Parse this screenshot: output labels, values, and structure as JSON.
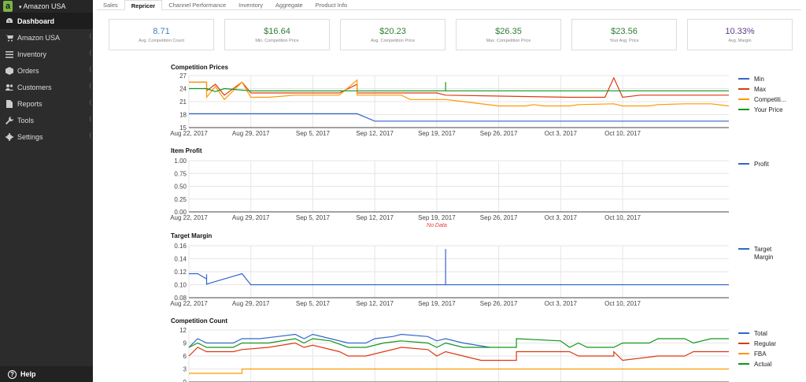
{
  "sidebar": {
    "store_selector": "Amazon USA",
    "logo": "a",
    "items": [
      {
        "label": "Dashboard",
        "icon": "gauge-icon",
        "active": true
      },
      {
        "label": "Amazon USA",
        "icon": "cart-icon"
      },
      {
        "label": "Inventory",
        "icon": "list-icon"
      },
      {
        "label": "Orders",
        "icon": "cube-icon"
      },
      {
        "label": "Customers",
        "icon": "users-icon"
      },
      {
        "label": "Reports",
        "icon": "document-icon"
      },
      {
        "label": "Tools",
        "icon": "wrench-icon"
      },
      {
        "label": "Settings",
        "icon": "gear-icon"
      }
    ],
    "help": "Help"
  },
  "tabs": [
    "Sales",
    "Repricer",
    "Channel Performance",
    "Inventory",
    "Aggregate",
    "Product Info"
  ],
  "active_tab": "Repricer",
  "stats": [
    {
      "value": "8.71",
      "label": "Avg. Competition Count",
      "color": "#3f7fbf"
    },
    {
      "value": "$16.64",
      "label": "Min. Competition Price",
      "color": "#2e7d32"
    },
    {
      "value": "$20.23",
      "label": "Avg. Competition Price",
      "color": "#2e7d32"
    },
    {
      "value": "$26.35",
      "label": "Max. Competition Price",
      "color": "#2e7d32"
    },
    {
      "value": "$23.56",
      "label": "Your Avg. Price",
      "color": "#2e7d32"
    },
    {
      "value": "10.33%",
      "label": "Avg. Margin",
      "color": "#5e3a8c"
    }
  ],
  "chart_data": [
    {
      "type": "line",
      "title": "Competition Prices",
      "x_ticks": [
        "Aug 22, 2017",
        "Aug 29, 2017",
        "Sep 5, 2017",
        "Sep 12, 2017",
        "Sep 19, 2017",
        "Sep 26, 2017",
        "Oct 3, 2017",
        "Oct 10, 2017"
      ],
      "xlim": [
        "2017-08-22",
        "2017-10-22"
      ],
      "y_ticks": [
        "27",
        "24",
        "21",
        "18",
        "15"
      ],
      "ylim": [
        15,
        27
      ],
      "series": [
        {
          "name": "Min",
          "color": "#3366cc",
          "points": [
            [
              "2017-08-22",
              18.2
            ],
            [
              "2017-09-10",
              18.2
            ],
            [
              "2017-09-12",
              16.5
            ],
            [
              "2017-10-22",
              16.5
            ]
          ]
        },
        {
          "name": "Max",
          "color": "#dc3912",
          "points": [
            [
              "2017-08-22",
              25.5
            ],
            [
              "2017-08-24",
              25.5
            ],
            [
              "2017-08-24",
              23.5
            ],
            [
              "2017-08-25",
              25
            ],
            [
              "2017-08-26",
              22.5
            ],
            [
              "2017-08-28",
              25.5
            ],
            [
              "2017-08-29",
              23
            ],
            [
              "2017-09-08",
              23
            ],
            [
              "2017-09-10",
              25
            ],
            [
              "2017-09-10",
              23
            ],
            [
              "2017-09-19",
              23
            ],
            [
              "2017-09-20",
              22.5
            ],
            [
              "2017-10-04",
              22
            ],
            [
              "2017-10-08",
              22
            ],
            [
              "2017-10-09",
              26.5
            ],
            [
              "2017-10-10",
              22
            ],
            [
              "2017-10-12",
              22.5
            ],
            [
              "2017-10-22",
              22.5
            ]
          ]
        },
        {
          "name": "Competiti...",
          "color": "#ff9900",
          "points": [
            [
              "2017-08-22",
              25.5
            ],
            [
              "2017-08-24",
              25.5
            ],
            [
              "2017-08-24",
              22
            ],
            [
              "2017-08-25",
              24.5
            ],
            [
              "2017-08-26",
              21.5
            ],
            [
              "2017-08-28",
              25.5
            ],
            [
              "2017-08-29",
              22
            ],
            [
              "2017-08-31",
              22
            ],
            [
              "2017-09-03",
              22.5
            ],
            [
              "2017-09-08",
              22.5
            ],
            [
              "2017-09-10",
              26
            ],
            [
              "2017-09-10",
              22.5
            ],
            [
              "2017-09-15",
              22.5
            ],
            [
              "2017-09-16",
              21.5
            ],
            [
              "2017-09-20",
              21.5
            ],
            [
              "2017-09-22",
              21
            ],
            [
              "2017-09-26",
              20
            ],
            [
              "2017-09-29",
              20
            ],
            [
              "2017-09-30",
              20.3
            ],
            [
              "2017-10-01",
              20
            ],
            [
              "2017-10-04",
              20
            ],
            [
              "2017-10-05",
              20.3
            ],
            [
              "2017-10-09",
              20.5
            ],
            [
              "2017-10-10",
              20
            ],
            [
              "2017-10-13",
              20
            ],
            [
              "2017-10-14",
              20.3
            ],
            [
              "2017-10-17",
              20.5
            ],
            [
              "2017-10-20",
              20.5
            ],
            [
              "2017-10-22",
              20
            ]
          ]
        },
        {
          "name": "Your Price",
          "color": "#109618",
          "points": [
            [
              "2017-08-22",
              24
            ],
            [
              "2017-08-24",
              24
            ],
            [
              "2017-08-25",
              23.3
            ],
            [
              "2017-08-26",
              24
            ],
            [
              "2017-08-29",
              23.5
            ],
            [
              "2017-09-20",
              23.5
            ],
            [
              "2017-09-20",
              25.5
            ],
            [
              "2017-09-20",
              23.5
            ],
            [
              "2017-10-22",
              23.5
            ]
          ]
        }
      ]
    },
    {
      "type": "line",
      "title": "Item Profit",
      "x_ticks": [
        "Aug 22, 2017",
        "Aug 29, 2017",
        "Sep 5, 2017",
        "Sep 12, 2017",
        "Sep 19, 2017",
        "Sep 26, 2017",
        "Oct 3, 2017",
        "Oct 10, 2017"
      ],
      "xlim": [
        "2017-08-22",
        "2017-10-22"
      ],
      "y_ticks": [
        "1.00",
        "0.75",
        "0.50",
        "0.25",
        "0.00"
      ],
      "ylim": [
        0,
        1
      ],
      "series": [
        {
          "name": "Profit",
          "color": "#3366cc",
          "points": []
        }
      ],
      "annotation": "No Data"
    },
    {
      "type": "line",
      "title": "Target Margin",
      "x_ticks": [
        "Aug 22, 2017",
        "Aug 29, 2017",
        "Sep 5, 2017",
        "Sep 12, 2017",
        "Sep 19, 2017",
        "Sep 26, 2017",
        "Oct 3, 2017",
        "Oct 10, 2017"
      ],
      "xlim": [
        "2017-08-22",
        "2017-10-22"
      ],
      "y_ticks": [
        "0.16",
        "0.14",
        "0.12",
        "0.10",
        "0.08"
      ],
      "ylim": [
        0.08,
        0.16
      ],
      "series": [
        {
          "name": "Target Margin",
          "color": "#3366cc",
          "points": [
            [
              "2017-08-22",
              0.117
            ],
            [
              "2017-08-23",
              0.117
            ],
            [
              "2017-08-24",
              0.109
            ],
            [
              "2017-08-24",
              0.1
            ],
            [
              "2017-08-24",
              0.116
            ],
            [
              "2017-08-24",
              0.101
            ],
            [
              "2017-08-27",
              0.113
            ],
            [
              "2017-08-28",
              0.117
            ],
            [
              "2017-08-29",
              0.1
            ],
            [
              "2017-09-20",
              0.1
            ],
            [
              "2017-09-20",
              0.155
            ],
            [
              "2017-09-20",
              0.1
            ],
            [
              "2017-10-22",
              0.1
            ]
          ]
        }
      ]
    },
    {
      "type": "line",
      "title": "Competition Count",
      "x_ticks": [],
      "xlim": [
        "2017-08-22",
        "2017-10-22"
      ],
      "y_ticks": [
        "12",
        "9",
        "6",
        "3",
        "0"
      ],
      "ylim": [
        0,
        12
      ],
      "series": [
        {
          "name": "Total",
          "color": "#3366cc",
          "points": [
            [
              "2017-08-22",
              8
            ],
            [
              "2017-08-23",
              10
            ],
            [
              "2017-08-24",
              9
            ],
            [
              "2017-08-27",
              9
            ],
            [
              "2017-08-28",
              10
            ],
            [
              "2017-08-30",
              10
            ],
            [
              "2017-09-01",
              10.5
            ],
            [
              "2017-09-03",
              11
            ],
            [
              "2017-09-04",
              10
            ],
            [
              "2017-09-05",
              11
            ],
            [
              "2017-09-07",
              10
            ],
            [
              "2017-09-09",
              9
            ],
            [
              "2017-09-11",
              9
            ],
            [
              "2017-09-12",
              10
            ],
            [
              "2017-09-14",
              10.5
            ],
            [
              "2017-09-15",
              11
            ],
            [
              "2017-09-18",
              10.5
            ],
            [
              "2017-09-19",
              9.5
            ],
            [
              "2017-09-20",
              10
            ],
            [
              "2017-09-22",
              9
            ],
            [
              "2017-09-25",
              8
            ]
          ]
        },
        {
          "name": "Regular",
          "color": "#dc3912",
          "points": [
            [
              "2017-08-22",
              6
            ],
            [
              "2017-08-23",
              8
            ],
            [
              "2017-08-24",
              7
            ],
            [
              "2017-08-27",
              7
            ],
            [
              "2017-08-28",
              7.5
            ],
            [
              "2017-08-31",
              8
            ],
            [
              "2017-09-03",
              9
            ],
            [
              "2017-09-04",
              8
            ],
            [
              "2017-09-05",
              8.5
            ],
            [
              "2017-09-08",
              7
            ],
            [
              "2017-09-09",
              6
            ],
            [
              "2017-09-11",
              6
            ],
            [
              "2017-09-13",
              7
            ],
            [
              "2017-09-15",
              8
            ],
            [
              "2017-09-18",
              7.5
            ],
            [
              "2017-09-19",
              6
            ],
            [
              "2017-09-20",
              7
            ],
            [
              "2017-09-22",
              6
            ],
            [
              "2017-09-24",
              5
            ],
            [
              "2017-09-28",
              5
            ],
            [
              "2017-09-28",
              7
            ],
            [
              "2017-10-04",
              7
            ],
            [
              "2017-10-05",
              6
            ],
            [
              "2017-10-09",
              6
            ],
            [
              "2017-10-09",
              7
            ],
            [
              "2017-10-10",
              5
            ],
            [
              "2017-10-14",
              6
            ],
            [
              "2017-10-17",
              6
            ],
            [
              "2017-10-18",
              7
            ],
            [
              "2017-10-22",
              7
            ]
          ]
        },
        {
          "name": "FBA",
          "color": "#ff9900",
          "points": [
            [
              "2017-08-22",
              2
            ],
            [
              "2017-08-28",
              2
            ],
            [
              "2017-08-28",
              3
            ],
            [
              "2017-10-22",
              3
            ]
          ]
        },
        {
          "name": "Actual",
          "color": "#109618",
          "points": [
            [
              "2017-08-22",
              8
            ],
            [
              "2017-08-23",
              9
            ],
            [
              "2017-08-24",
              8
            ],
            [
              "2017-08-27",
              8
            ],
            [
              "2017-08-28",
              9
            ],
            [
              "2017-08-31",
              9
            ],
            [
              "2017-09-03",
              10
            ],
            [
              "2017-09-04",
              9
            ],
            [
              "2017-09-05",
              10
            ],
            [
              "2017-09-07",
              9.5
            ],
            [
              "2017-09-09",
              8
            ],
            [
              "2017-09-11",
              8
            ],
            [
              "2017-09-13",
              9
            ],
            [
              "2017-09-15",
              9.5
            ],
            [
              "2017-09-18",
              9
            ],
            [
              "2017-09-19",
              8
            ],
            [
              "2017-09-20",
              9
            ],
            [
              "2017-09-22",
              8
            ],
            [
              "2017-09-28",
              8
            ],
            [
              "2017-09-28",
              10
            ],
            [
              "2017-10-03",
              9.5
            ],
            [
              "2017-10-04",
              8
            ],
            [
              "2017-10-05",
              9
            ],
            [
              "2017-10-06",
              8
            ],
            [
              "2017-10-09",
              8
            ],
            [
              "2017-10-10",
              9
            ],
            [
              "2017-10-13",
              9
            ],
            [
              "2017-10-14",
              10
            ],
            [
              "2017-10-17",
              10
            ],
            [
              "2017-10-18",
              9
            ],
            [
              "2017-10-20",
              10
            ],
            [
              "2017-10-22",
              10
            ]
          ]
        }
      ]
    }
  ]
}
